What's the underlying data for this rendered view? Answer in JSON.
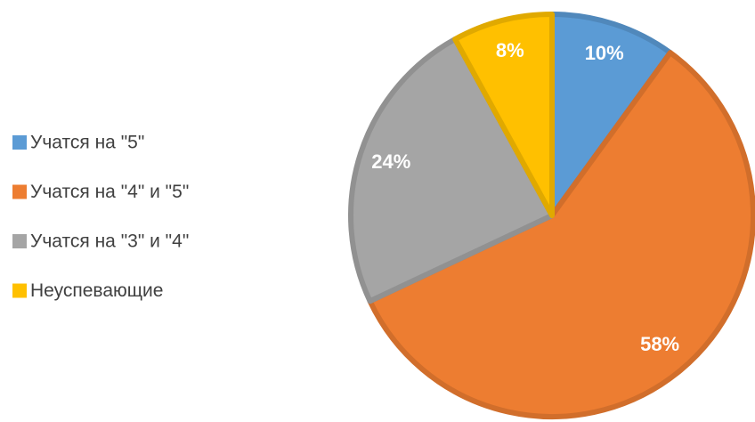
{
  "chart_data": {
    "type": "pie",
    "categories": [
      "Учатся на \"5\"",
      "Учатся на \"4\" и \"5\"",
      "Учатся на \"3\" и \"4\"",
      "Неуспевающие"
    ],
    "values": [
      10,
      58,
      24,
      8
    ],
    "value_labels": [
      "10%",
      "58%",
      "24%",
      "8%"
    ],
    "colors": [
      "#5b9bd5",
      "#ed7d31",
      "#a5a5a5",
      "#ffc000"
    ],
    "legend": "left"
  }
}
